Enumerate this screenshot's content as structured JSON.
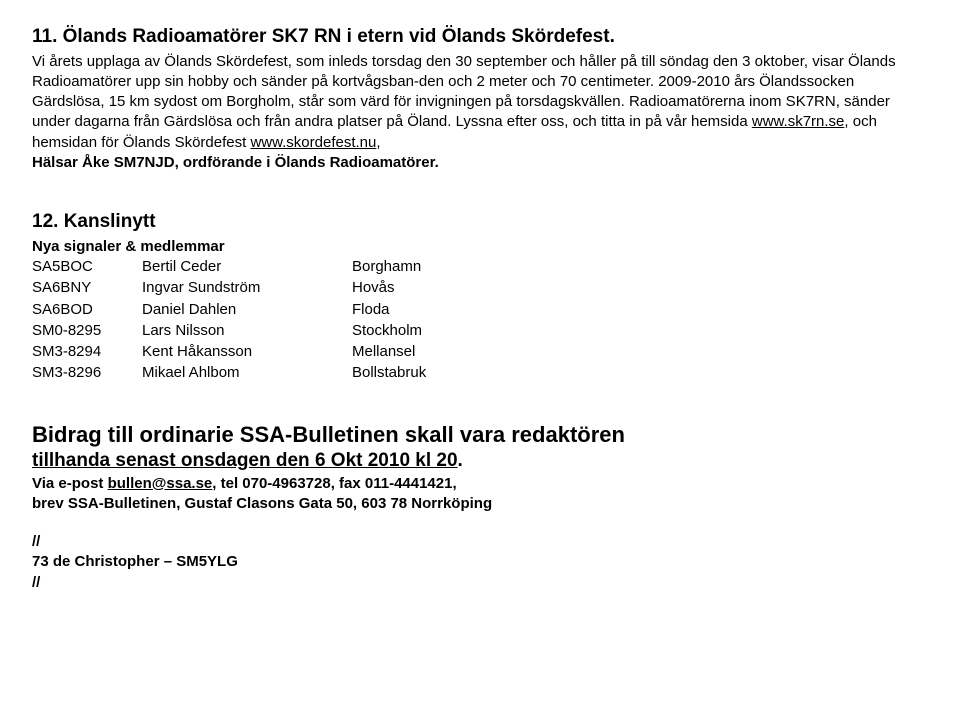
{
  "section11": {
    "heading": "11. Ölands Radioamatörer SK7 RN i etern vid Ölands Skördefest.",
    "p_pre1": "Vi årets upplaga av Ölands Skördefest, som inleds torsdag den 30 september och håller på till söndag den 3 oktober, visar Ölands Radioamatörer upp sin hobby och sänder på kortvågsban-den och 2 meter och 70 centimeter. 2009-2010 års Ölandssocken  Gärdslösa, 15 km sydost om Borgholm, står som värd för invigningen på torsdagskvällen. Radioamatörerna inom SK7RN, sänder under dagarna från Gärdslösa och från andra platser på Öland. Lyssna efter oss, och titta in på vår hemsida ",
    "link1": "www.sk7rn.se",
    "p_mid1": ", och hemsidan för Ölands Skördefest ",
    "link2": "www.skordefest.nu",
    "p_after1": ", ",
    "closing_bold": "Hälsar Åke SM7NJD, ordförande i Ölands Radioamatörer."
  },
  "section12": {
    "heading": "12. Kanslinytt",
    "subheading": "Nya signaler & medlemmar",
    "members": [
      {
        "sig": "SA5BOC",
        "name": "Bertil Ceder",
        "loc": "Borghamn"
      },
      {
        "sig": "SA6BNY",
        "name": "Ingvar Sundström",
        "loc": "Hovås"
      },
      {
        "sig": "SA6BOD",
        "name": "Daniel Dahlen",
        "loc": "Floda"
      },
      {
        "sig": "SM0-8295",
        "name": "Lars Nilsson",
        "loc": "Stockholm"
      },
      {
        "sig": "SM3-8294",
        "name": "Kent Håkansson",
        "loc": "Mellansel"
      },
      {
        "sig": "SM3-8296",
        "name": "Mikael Ahlbom",
        "loc": "Bollstabruk"
      }
    ]
  },
  "deadline": {
    "line1": "Bidrag till ordinarie SSA-Bulletinen skall vara redaktören",
    "line2_pre": "tillhanda senast onsdagen den 6 Okt 2010 kl 20",
    "line2_post": ".",
    "contact_pre": "Via e-post ",
    "contact_email": "bullen@ssa.se",
    "contact_post": ", tel 070-4963728, fax 011-4441421,",
    "contact_addr": "brev SSA-Bulletinen, Gustaf Clasons Gata 50, 603 78 Norrköping"
  },
  "signoff": {
    "slash1": "//",
    "line": "73 de Christopher – SM5YLG",
    "slash2": "//"
  }
}
